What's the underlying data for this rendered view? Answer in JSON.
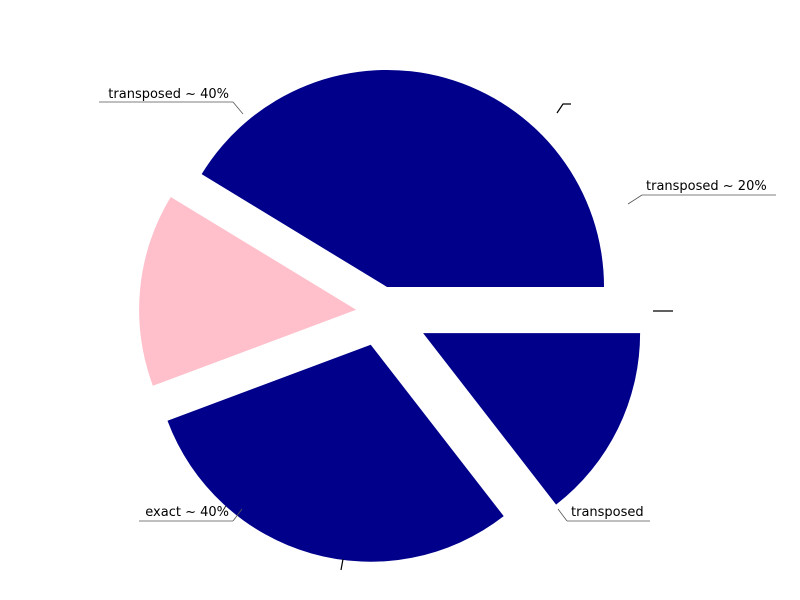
{
  "chart_data": {
    "type": "pie",
    "title": "",
    "slices": [
      {
        "label": "transposed ~ 20%",
        "value": 14.5,
        "color": "#00008b"
      },
      {
        "label": "transposed",
        "value": 29.8,
        "color": "#00008b"
      },
      {
        "label": "exact ~ 40%",
        "value": 14.4,
        "color": "#ffc0cb"
      },
      {
        "label": "transposed ~ 40%",
        "value": 41.3,
        "color": "#00008b"
      }
    ],
    "start_angle_deg": 0,
    "direction": "clockwise",
    "exploded": true,
    "legend": "none"
  }
}
